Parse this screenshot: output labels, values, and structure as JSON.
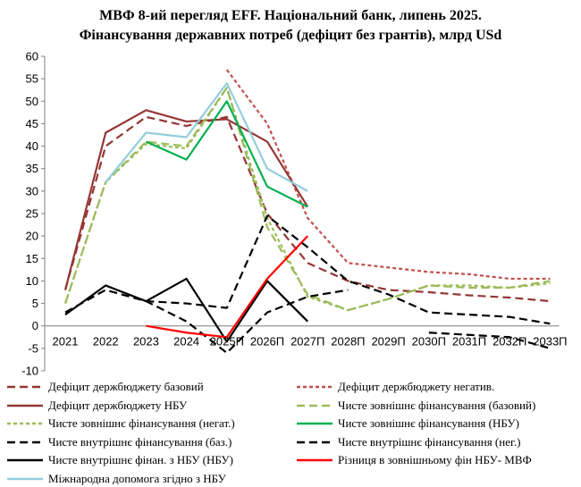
{
  "title_line1": "МВФ 8-ий перегляд EFF. Національний  банк, липень 2025.",
  "title_line2": "Фінансування державних потреб (дефіцит без грантів), млрд USd",
  "chart_data": {
    "type": "line",
    "categories": [
      "2021",
      "2022",
      "2023",
      "2024",
      "2025П",
      "2026П",
      "2027П",
      "2028П",
      "2029П",
      "2030П",
      "2031П",
      "2032П",
      "2033П"
    ],
    "ylim": [
      -10,
      60
    ],
    "yticks": [
      -10,
      -5,
      0,
      5,
      10,
      15,
      20,
      25,
      30,
      35,
      40,
      45,
      50,
      55,
      60
    ],
    "grid": false,
    "legend_position": "bottom",
    "series": [
      {
        "name": "Дефіцит держбюджету базовий",
        "color": "#943634",
        "dash": "dash",
        "width": 2.2,
        "values": [
          8,
          40,
          46.5,
          44.5,
          46.5,
          25,
          14,
          10,
          8,
          7.5,
          6.8,
          6.3,
          5.5
        ]
      },
      {
        "name": "Дефіцит держбюджету негатив.",
        "color": "#c0504d",
        "dash": "dot",
        "width": 2.2,
        "values": [
          null,
          null,
          null,
          null,
          57,
          45,
          24,
          14,
          13,
          12,
          11.5,
          10.5,
          10.5
        ]
      },
      {
        "name": "Дефіцит держбюджету НБУ",
        "color": "#943634",
        "dash": "solid",
        "width": 2.2,
        "values": [
          8,
          43,
          48,
          45.5,
          46,
          41,
          26.5,
          null,
          null,
          null,
          null,
          null,
          null
        ]
      },
      {
        "name": "Чисте зовнішнє фінансування (базовий)",
        "color": "#9bbb59",
        "dash": "dash",
        "width": 2.2,
        "values": [
          5,
          32,
          41,
          40,
          53,
          22,
          7,
          3.5,
          6,
          9,
          8.5,
          8.5,
          10
        ]
      },
      {
        "name": "Чисте зовнішнє фінансування (негат.)",
        "color": "#9bbb59",
        "dash": "dot",
        "width": 2.2,
        "values": [
          5,
          32,
          40.5,
          39.5,
          53,
          24,
          6.5,
          3.5,
          6,
          9,
          9,
          8.5,
          9.5
        ]
      },
      {
        "name": "Чисте зовнішнє фінансування (НБУ)",
        "color": "#00b050",
        "dash": "solid",
        "width": 2.2,
        "values": [
          null,
          null,
          41,
          37,
          50,
          31,
          26.5,
          null,
          null,
          null,
          null,
          null,
          null
        ]
      },
      {
        "name": "Чисте внутрішнє фінансування (баз.)",
        "color": "#000000",
        "dash": "dash",
        "width": 2.2,
        "values": [
          3,
          8,
          5.5,
          1,
          -6,
          3,
          6.5,
          8,
          null,
          null,
          null,
          null,
          null
        ]
      },
      {
        "name": "Чисте внутрішнє фінансування (нег.)",
        "color": "#000000",
        "dash": "dash",
        "width": 2.2,
        "values": [
          null,
          null,
          5.5,
          5,
          4,
          24.5,
          17.5,
          10,
          7,
          3,
          2.5,
          2,
          0.5
        ]
      },
      {
        "name": "Чисте внутрішнє фінан. з НБУ (НБУ)",
        "color": "#000000",
        "dash": "solid",
        "width": 2.2,
        "values": [
          2.5,
          9,
          5.5,
          10.5,
          -3.5,
          10,
          1,
          null,
          null,
          null,
          null,
          null,
          null
        ]
      },
      {
        "name": "Різниця в зовнішньому фін НБУ- МВФ",
        "color": "#ff0000",
        "dash": "solid",
        "width": 2.2,
        "values": [
          null,
          null,
          0,
          -1.5,
          -2.5,
          10.5,
          20,
          null,
          null,
          null,
          null,
          null,
          null
        ]
      },
      {
        "name": "Міжнародна допомога згідно з НБУ",
        "color": "#93cddd",
        "dash": "solid",
        "width": 2.2,
        "values": [
          null,
          32,
          43,
          42,
          54,
          35,
          30,
          null,
          null,
          null,
          null,
          null,
          null
        ]
      }
    ],
    "extra_lines": [
      {
        "of": "Чисте внутрішнє фінансування (нег.)",
        "x": [
          "2029П",
          "2030П",
          "2031П",
          "2032П",
          "2033П"
        ],
        "values": [
          null,
          -1.5,
          -2,
          -2.5,
          -5
        ],
        "color": "#000000",
        "dash": "dash"
      }
    ]
  }
}
